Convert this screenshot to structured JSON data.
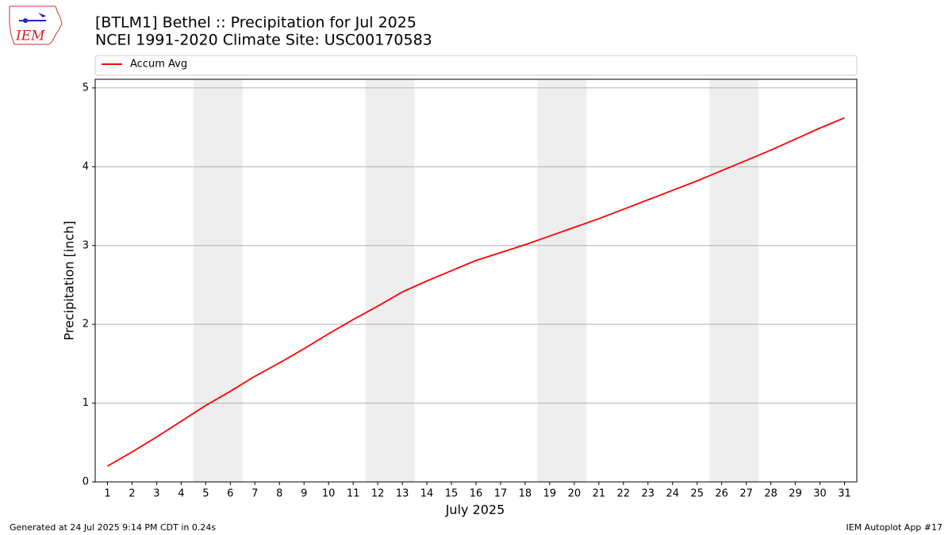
{
  "chart_data": {
    "type": "line",
    "title": "[BTLM1] Bethel :: Precipitation for Jul 2025",
    "subtitle": "NCEI 1991-2020 Climate Site: USC00170583",
    "xlabel": "July 2025",
    "ylabel": "Precipitation [inch]",
    "x": [
      1,
      2,
      3,
      4,
      5,
      6,
      7,
      8,
      9,
      10,
      11,
      12,
      13,
      14,
      15,
      16,
      17,
      18,
      19,
      20,
      21,
      22,
      23,
      24,
      25,
      26,
      27,
      28,
      29,
      30,
      31
    ],
    "series": [
      {
        "name": "Accum Avg",
        "color": "#ff0000",
        "values": [
          0.2,
          0.38,
          0.57,
          0.77,
          0.97,
          1.15,
          1.34,
          1.51,
          1.69,
          1.88,
          2.06,
          2.23,
          2.41,
          2.55,
          2.68,
          2.81,
          2.91,
          3.01,
          3.12,
          3.23,
          3.34,
          3.46,
          3.58,
          3.7,
          3.82,
          3.95,
          4.08,
          4.21,
          4.35,
          4.49,
          4.62
        ]
      }
    ],
    "shaded_x_ranges": [
      [
        4.5,
        6.5
      ],
      [
        11.5,
        13.5
      ],
      [
        18.5,
        20.5
      ],
      [
        25.5,
        27.5
      ]
    ],
    "shade_color": "#eeeeee",
    "xlim": [
      0.5,
      31.5
    ],
    "ylim": [
      0,
      5.11
    ],
    "xticks": [
      1,
      2,
      3,
      4,
      5,
      6,
      7,
      8,
      9,
      10,
      11,
      12,
      13,
      14,
      15,
      16,
      17,
      18,
      19,
      20,
      21,
      22,
      23,
      24,
      25,
      26,
      27,
      28,
      29,
      30,
      31
    ],
    "yticks": [
      0,
      1,
      2,
      3,
      4,
      5
    ],
    "grid": "y",
    "legend_loc": "above"
  },
  "logo": {
    "text": "IEM"
  },
  "footer": {
    "left": "Generated at 24 Jul 2025 9:14 PM CDT in 0.24s",
    "right": "IEM Autoplot App #17"
  }
}
